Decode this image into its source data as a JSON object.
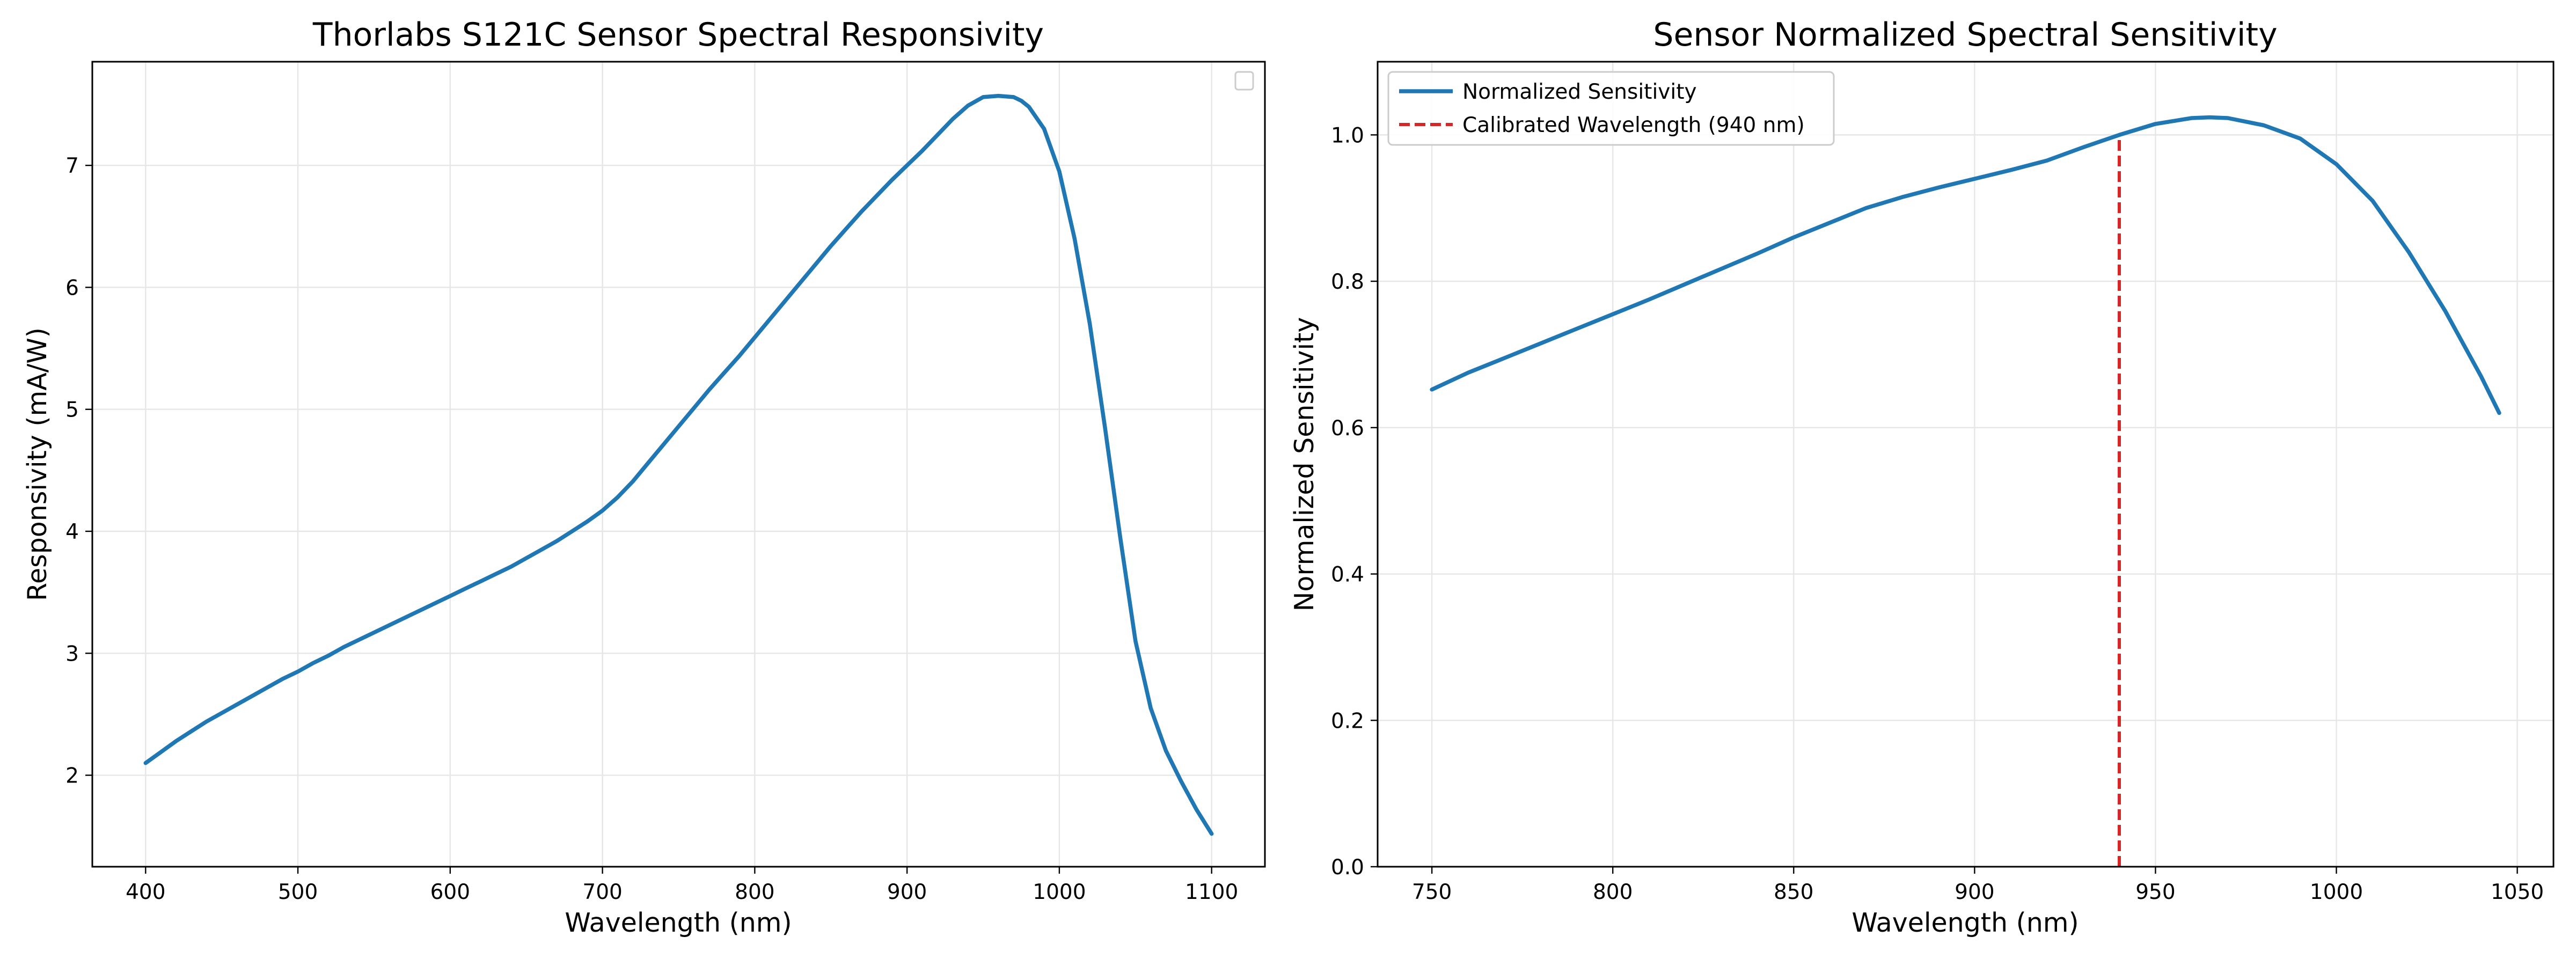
{
  "figure": {
    "background": "#ffffff",
    "grid_color": "#e6e6e6",
    "axis_color": "#000000"
  },
  "chart_data": [
    {
      "type": "line",
      "title": "Thorlabs S121C Sensor Spectral Responsivity",
      "xlabel": "Wavelength (nm)",
      "ylabel": "Responsivity (mA/W)",
      "xlim": [
        365,
        1135
      ],
      "ylim": [
        1.25,
        7.85
      ],
      "xticks": [
        400,
        500,
        600,
        700,
        800,
        900,
        1000,
        1100
      ],
      "yticks": [
        2,
        3,
        4,
        5,
        6,
        7
      ],
      "grid": true,
      "legend": {
        "placement": "top-right",
        "entries": []
      },
      "series": [
        {
          "color": "#1f77b4",
          "style": "solid",
          "x": [
            400,
            410,
            420,
            430,
            440,
            450,
            460,
            470,
            480,
            490,
            500,
            510,
            520,
            530,
            540,
            550,
            560,
            570,
            580,
            590,
            600,
            610,
            620,
            630,
            640,
            650,
            660,
            670,
            680,
            690,
            700,
            710,
            720,
            730,
            740,
            750,
            760,
            770,
            780,
            790,
            800,
            810,
            820,
            830,
            840,
            850,
            860,
            870,
            880,
            890,
            900,
            910,
            920,
            930,
            940,
            950,
            960,
            970,
            975,
            980,
            990,
            1000,
            1010,
            1020,
            1030,
            1040,
            1050,
            1060,
            1070,
            1080,
            1090,
            1100
          ],
          "y": [
            2.1,
            2.19,
            2.28,
            2.36,
            2.44,
            2.51,
            2.58,
            2.65,
            2.72,
            2.79,
            2.85,
            2.92,
            2.98,
            3.05,
            3.11,
            3.17,
            3.23,
            3.29,
            3.35,
            3.41,
            3.47,
            3.53,
            3.59,
            3.65,
            3.71,
            3.78,
            3.85,
            3.92,
            4.0,
            4.08,
            4.17,
            4.28,
            4.41,
            4.56,
            4.71,
            4.86,
            5.01,
            5.16,
            5.3,
            5.44,
            5.59,
            5.74,
            5.89,
            6.04,
            6.19,
            6.34,
            6.48,
            6.62,
            6.75,
            6.88,
            7.0,
            7.12,
            7.25,
            7.38,
            7.49,
            7.56,
            7.57,
            7.56,
            7.53,
            7.48,
            7.3,
            6.95,
            6.4,
            5.7,
            4.85,
            3.95,
            3.1,
            2.55,
            2.2,
            1.95,
            1.72,
            1.52
          ]
        }
      ]
    },
    {
      "type": "line",
      "title": "Sensor Normalized Spectral Sensitivity",
      "xlabel": "Wavelength (nm)",
      "ylabel": "Normalized Sensitivity",
      "xlim": [
        735,
        1060
      ],
      "ylim": [
        0.0,
        1.1
      ],
      "xticks": [
        750,
        800,
        850,
        900,
        950,
        1000,
        1050
      ],
      "yticks": [
        0.0,
        0.2,
        0.4,
        0.6,
        0.8,
        1.0
      ],
      "grid": true,
      "legend": {
        "placement": "top-left",
        "entries": [
          "Normalized Sensitivity",
          "Calibrated Wavelength (940 nm)"
        ]
      },
      "series": [
        {
          "name": "Normalized Sensitivity",
          "color": "#1f77b4",
          "style": "solid",
          "x": [
            750,
            760,
            770,
            780,
            790,
            800,
            810,
            820,
            830,
            840,
            850,
            860,
            870,
            880,
            890,
            900,
            910,
            920,
            930,
            940,
            950,
            960,
            965,
            970,
            980,
            990,
            1000,
            1010,
            1020,
            1030,
            1040,
            1045
          ],
          "y": [
            0.652,
            0.675,
            0.695,
            0.715,
            0.735,
            0.755,
            0.775,
            0.796,
            0.817,
            0.838,
            0.86,
            0.88,
            0.9,
            0.915,
            0.928,
            0.94,
            0.952,
            0.965,
            0.983,
            1.0,
            1.015,
            1.023,
            1.024,
            1.023,
            1.013,
            0.995,
            0.96,
            0.91,
            0.84,
            0.76,
            0.67,
            0.62
          ]
        },
        {
          "name": "Calibrated Wavelength (940 nm)",
          "color": "#d62728",
          "style": "dashed",
          "x": [
            940,
            940
          ],
          "y": [
            0.0,
            1.0
          ]
        }
      ]
    }
  ]
}
